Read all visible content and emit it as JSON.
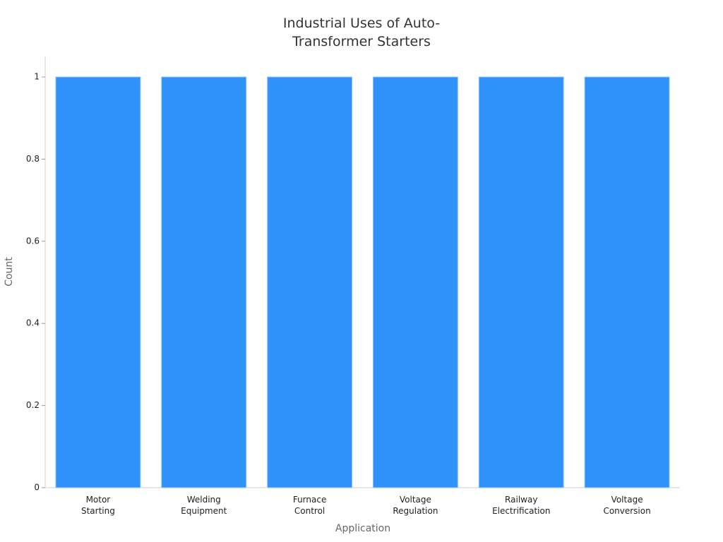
{
  "chart_data": {
    "type": "bar",
    "title": "Industrial Uses of Auto-Transformer Starters",
    "x_label": "Application",
    "y_label": "Count",
    "categories": [
      "Motor Starting",
      "Welding Equipment",
      "Furnace Control",
      "Voltage Regulation",
      "Railway Electrification",
      "Voltage Conversion"
    ],
    "values": [
      1,
      1,
      1,
      1,
      1,
      1
    ],
    "color": "#2f92fa",
    "ylim": [
      0,
      1.05
    ],
    "yticks": [
      0,
      0.2,
      0.4,
      0.6,
      0.8,
      1
    ],
    "grid": false
  }
}
